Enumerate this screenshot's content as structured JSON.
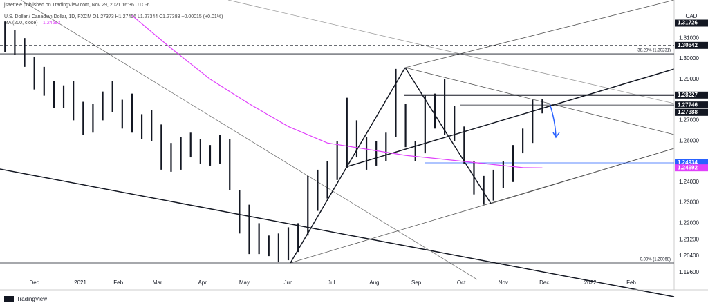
{
  "header": {
    "publisher": "jsaettele published on TradingView.com, Nov 29, 2021 16:36 UTC-6",
    "symbol": "U.S. Dollar / Canadian Dollar, 1D, FXCM  O1.27373  H1.27456  L1.27344  C1.27388  +0.00015 (+0.01%)",
    "indicator": "MA (200, close)",
    "indicator_value": "1.24692"
  },
  "footer": "TradingView",
  "chart_data": {
    "type": "ohlc",
    "currency": "CAD",
    "grid": false,
    "x": [
      -3,
      -2,
      -1,
      0,
      1,
      2,
      3,
      4,
      5,
      6,
      7,
      8,
      9,
      10,
      11,
      12,
      13,
      14,
      15,
      16,
      17,
      18,
      19,
      20,
      21,
      22,
      23,
      24,
      25,
      26,
      27,
      28,
      29,
      30,
      31,
      32,
      33,
      34,
      35,
      36,
      37,
      38,
      39,
      40,
      41,
      42,
      43,
      44,
      45,
      46,
      47,
      48,
      49,
      50,
      51,
      52
    ],
    "series": [
      {
        "name": "USDCAD",
        "color": "#131722",
        "highs": [
          1.318,
          1.314,
          1.31,
          1.301,
          1.296,
          1.289,
          1.287,
          1.289,
          1.279,
          1.278,
          1.284,
          1.289,
          1.28,
          1.283,
          1.273,
          1.275,
          1.268,
          1.259,
          1.262,
          1.264,
          1.261,
          1.258,
          1.263,
          1.261,
          1.236,
          1.229,
          1.22,
          1.214,
          1.215,
          1.218,
          1.22,
          1.243,
          1.246,
          1.25,
          1.26,
          1.281,
          1.27,
          1.262,
          1.26,
          1.264,
          1.295,
          1.278,
          1.26,
          1.282,
          1.283,
          1.29,
          1.277,
          1.267,
          1.25,
          1.243,
          1.246,
          1.25,
          1.258,
          1.266,
          1.28,
          1.2805
        ],
        "lows": [
          1.303,
          1.302,
          1.296,
          1.285,
          1.282,
          1.276,
          1.276,
          1.27,
          1.263,
          1.264,
          1.27,
          1.274,
          1.266,
          1.264,
          1.261,
          1.26,
          1.246,
          1.245,
          1.246,
          1.252,
          1.249,
          1.248,
          1.249,
          1.236,
          1.215,
          1.205,
          1.205,
          1.204,
          1.201,
          1.202,
          1.206,
          1.214,
          1.226,
          1.232,
          1.241,
          1.247,
          1.252,
          1.246,
          1.248,
          1.25,
          1.262,
          1.257,
          1.25,
          1.254,
          1.266,
          1.263,
          1.26,
          1.249,
          1.234,
          1.229,
          1.231,
          1.237,
          1.24,
          1.254,
          1.259,
          1.2734
        ]
      }
    ],
    "ma": {
      "color": "#e040fb",
      "x": [
        10,
        14,
        18,
        22,
        26,
        30,
        34,
        38,
        42,
        46,
        50,
        52
      ],
      "values": [
        1.321,
        1.305,
        1.29,
        1.278,
        1.267,
        1.259,
        1.256,
        1.253,
        1.251,
        1.249,
        1.247,
        1.24692
      ]
    },
    "xlim": [
      -3.514,
      65.49
    ],
    "xticks": [
      {
        "value": 0,
        "label": "Dec"
      },
      {
        "value": 4.7,
        "label": "2021"
      },
      {
        "value": 8.6,
        "label": "Feb"
      },
      {
        "value": 12.6,
        "label": "Mar"
      },
      {
        "value": 17.2,
        "label": "Apr"
      },
      {
        "value": 21.5,
        "label": "May"
      },
      {
        "value": 26.0,
        "label": "Jun"
      },
      {
        "value": 30.4,
        "label": "Jul"
      },
      {
        "value": 34.8,
        "label": "Aug"
      },
      {
        "value": 39.1,
        "label": "Sep"
      },
      {
        "value": 43.7,
        "label": "Oct"
      },
      {
        "value": 48.0,
        "label": "Nov"
      },
      {
        "value": 52.2,
        "label": "Dec"
      },
      {
        "value": 56.9,
        "label": "2022"
      },
      {
        "value": 61.1,
        "label": "Feb"
      }
    ],
    "ylim": [
      1.1876,
      1.3285
    ],
    "yticks": [
      {
        "value": 1.31,
        "label": "1.31000"
      },
      {
        "value": 1.3,
        "label": "1.30000"
      },
      {
        "value": 1.29,
        "label": "1.29000"
      },
      {
        "value": 1.27,
        "label": "1.27000"
      },
      {
        "value": 1.26,
        "label": "1.26000"
      },
      {
        "value": 1.24,
        "label": "1.24000"
      },
      {
        "value": 1.23,
        "label": "1.23000"
      },
      {
        "value": 1.22,
        "label": "1.22000"
      },
      {
        "value": 1.212,
        "label": "1.21200"
      },
      {
        "value": 1.204,
        "label": "1.20400"
      },
      {
        "value": 1.196,
        "label": "1.19600"
      }
    ],
    "levels": [
      {
        "value": 1.31726,
        "label": "1.31726",
        "color": "#131722",
        "style": "solid"
      },
      {
        "value": 1.30642,
        "label": "1.30642",
        "color": "#131722",
        "style": "dashed"
      },
      {
        "value": 1.28227,
        "label": "1.28227",
        "color": "#131722",
        "style": "thick"
      },
      {
        "value": 1.27746,
        "label": "1.27746",
        "color": "#131722",
        "style": "thin"
      },
      {
        "value": 1.27388,
        "label": "1.27388",
        "color": "#131722",
        "style": "none"
      },
      {
        "value": 1.24934,
        "label": "1.24934",
        "color": "#2962ff",
        "style": "thin"
      },
      {
        "value": 1.24692,
        "label": "1.24692",
        "color": "#e040fb",
        "style": "none"
      }
    ],
    "fib_levels": [
      {
        "value": 1.30231,
        "label": "38.20% (1.30231)"
      },
      {
        "value": 1.20068,
        "label": "0.00% (1.20068)"
      }
    ]
  }
}
